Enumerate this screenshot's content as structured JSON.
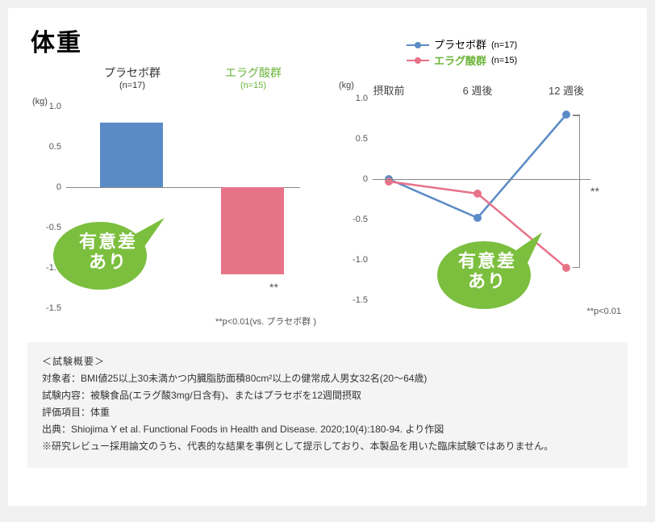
{
  "title": "体重",
  "colors": {
    "placebo": "#5b8bc6",
    "ellagic": "#e77389",
    "ellagic_text": "#6bb53a",
    "bubble": "#7cbf3f",
    "axis": "#888888",
    "text": "#444444",
    "desc_bg": "#f4f4f4"
  },
  "bar_chart": {
    "y_unit": "(kg)",
    "ylim": [
      -1.5,
      1.0
    ],
    "ytick_step": 0.5,
    "yticks": [
      "1.0",
      "0.5",
      "0",
      "-0.5",
      "-1.0",
      "-1.5"
    ],
    "columns": [
      {
        "label": "プラセボ群",
        "sub": "(n=17)",
        "value": 0.8,
        "color_key": "placebo",
        "label_color": "#333333"
      },
      {
        "label": "エラグ酸群",
        "sub": "(n=15)",
        "value": -1.08,
        "color_key": "ellagic",
        "label_color": "#6bb53a"
      }
    ],
    "bubble_text": "有意差\nあり",
    "sig_mark": "**",
    "footnote": "**p<0.01(vs. プラセボ群 )"
  },
  "line_chart": {
    "y_unit": "(kg)",
    "ylim": [
      -1.5,
      1.0
    ],
    "ytick_step": 0.5,
    "yticks": [
      "1.0",
      "0.5",
      "0",
      "-0.5",
      "-1.0",
      "-1.5"
    ],
    "x_labels": [
      "摂取前",
      "6 週後",
      "12 週後"
    ],
    "legend": [
      {
        "name": "プラセボ群",
        "n": "(n=17)",
        "color_key": "placebo"
      },
      {
        "name": "エラグ酸群",
        "n": "(n=15)",
        "color_key": "ellagic",
        "name_color": "#6bb53a"
      }
    ],
    "series": [
      {
        "color_key": "placebo",
        "points": [
          0.0,
          -0.48,
          0.8
        ]
      },
      {
        "color_key": "ellagic",
        "points": [
          -0.03,
          -0.18,
          -1.1
        ]
      }
    ],
    "bubble_text": "有意差\nあり",
    "sig_mark": "**",
    "footnote": "**p<0.01"
  },
  "description": {
    "heading": "＜試験概要＞",
    "lines": [
      "対象者：BMI値25以上30未満かつ内臓脂肪面積80cm²以上の健常成人男女32名(20～64歳)",
      "試験内容：被験食品(エラグ酸3mg/日含有)、またはプラセボを12週間摂取",
      "評価項目：体重",
      "出典：Shiojima Y et al. Functional Foods in Health and Disease. 2020;10(4):180-94. より作図",
      "※研究レビュー採用論文のうち、代表的な結果を事例として提示しており、本製品を用いた臨床試験ではありません。"
    ]
  }
}
